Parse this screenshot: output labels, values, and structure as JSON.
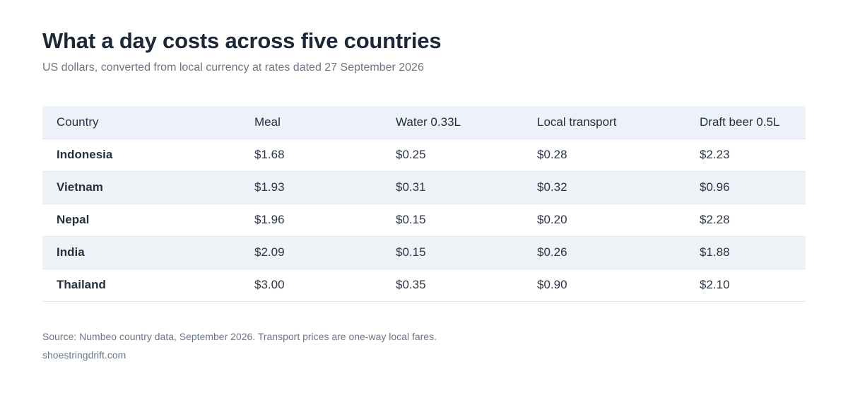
{
  "title": "What a day costs across five countries",
  "subtitle": "US dollars, converted from local currency at rates dated 27 September 2026",
  "table": {
    "columns": [
      "Country",
      "Meal",
      "Water 0.33L",
      "Local transport",
      "Draft beer 0.5L"
    ],
    "rows": [
      [
        "Indonesia",
        "$1.68",
        "$0.25",
        "$0.28",
        "$2.23"
      ],
      [
        "Vietnam",
        "$1.93",
        "$0.31",
        "$0.32",
        "$0.96"
      ],
      [
        "Nepal",
        "$1.96",
        "$0.15",
        "$0.20",
        "$2.28"
      ],
      [
        "India",
        "$2.09",
        "$0.15",
        "$0.26",
        "$1.88"
      ],
      [
        "Thailand",
        "$3.00",
        "$0.35",
        "$0.90",
        "$2.10"
      ]
    ]
  },
  "footer": {
    "source": "Source: Numbeo country data, September 2026. Transport prices are one-way local fares.",
    "site": "shoestringdrift.com"
  },
  "chart_data": {
    "type": "table",
    "title": "What a day costs across five countries",
    "subtitle": "US dollars, converted from local currency at rates dated 27 September 2026",
    "categories": [
      "Indonesia",
      "Vietnam",
      "Nepal",
      "India",
      "Thailand"
    ],
    "series": [
      {
        "name": "Meal",
        "values": [
          1.68,
          1.93,
          1.96,
          2.09,
          3.0
        ]
      },
      {
        "name": "Water 0.33L",
        "values": [
          0.25,
          0.31,
          0.15,
          0.15,
          0.35
        ]
      },
      {
        "name": "Local transport",
        "values": [
          0.28,
          0.32,
          0.2,
          0.26,
          0.9
        ]
      },
      {
        "name": "Draft beer 0.5L",
        "values": [
          2.23,
          0.96,
          2.28,
          1.88,
          2.1
        ]
      }
    ]
  },
  "colors": {
    "header_background": "#edf2f8",
    "striped_row_background": "#eff3f7",
    "text": "#1f2a3a",
    "muted_text": "#6a7686"
  }
}
